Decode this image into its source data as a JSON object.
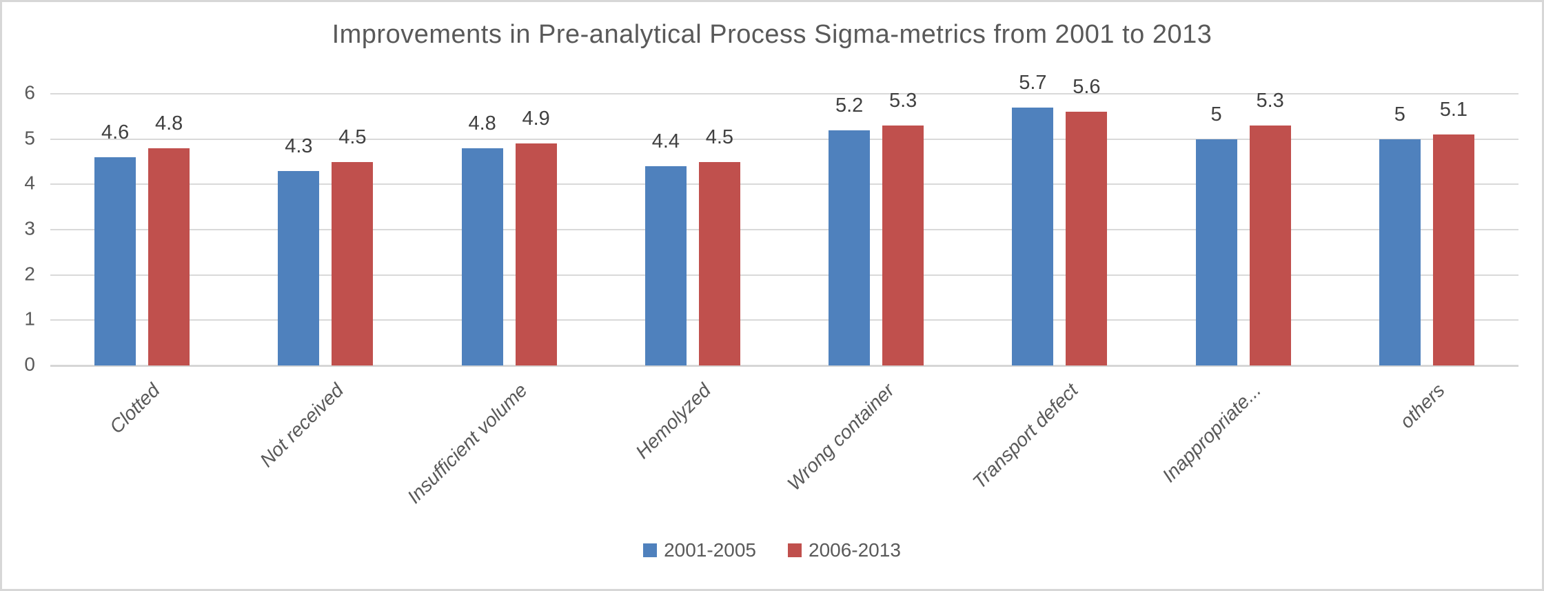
{
  "frame": {
    "background_color": "#ffffff",
    "border_color": "#d7d7d7"
  },
  "chart_data": {
    "type": "bar",
    "title": "Improvements in Pre-analytical Process Sigma-metrics from 2001 to 2013",
    "categories": [
      "Clotted",
      "Not received",
      "Insufficient volume",
      "Hemolyzed",
      "Wrong container",
      "Transport defect",
      "Inappropriate...",
      "others"
    ],
    "series": [
      {
        "name": "2001-2005",
        "color": "#4F81BD",
        "values": [
          4.6,
          4.3,
          4.8,
          4.4,
          5.2,
          5.7,
          5,
          5
        ]
      },
      {
        "name": "2006-2013",
        "color": "#C0504D",
        "values": [
          4.8,
          4.5,
          4.9,
          4.5,
          5.3,
          5.6,
          5.3,
          5.1
        ]
      }
    ],
    "value_labels": [
      [
        "4.6",
        "4.3",
        "4.8",
        "4.4",
        "5.2",
        "5.7",
        "5",
        "5"
      ],
      [
        "4.8",
        "4.5",
        "4.9",
        "4.5",
        "5.3",
        "5.6",
        "5.3",
        "5.1"
      ]
    ],
    "xlabel": "",
    "ylabel": "",
    "ylim": [
      0,
      6
    ],
    "yticks": [
      "0",
      "1",
      "2",
      "3",
      "4",
      "5",
      "6"
    ],
    "grid": true,
    "legend_position": "bottom",
    "text_color": "#595959",
    "data_label_color": "#404040",
    "gridline_color": "#d9d9d9"
  }
}
